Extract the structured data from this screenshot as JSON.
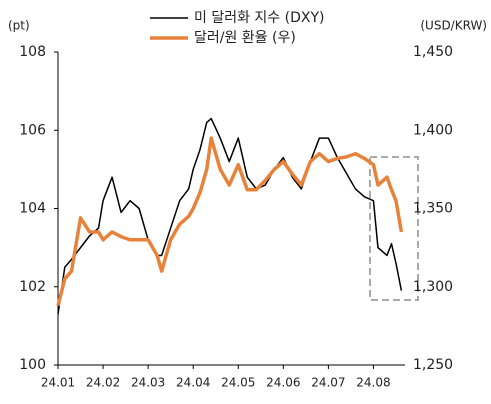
{
  "chart_data": {
    "type": "line",
    "y_label": "(pt)",
    "y2_label": "(USD/KRW)",
    "x": [
      0,
      0.15,
      0.3,
      0.5,
      0.7,
      0.9,
      1.0,
      1.2,
      1.4,
      1.6,
      1.8,
      2.0,
      2.2,
      2.3,
      2.5,
      2.7,
      2.9,
      3.0,
      3.15,
      3.3,
      3.4,
      3.6,
      3.8,
      4.0,
      4.2,
      4.4,
      4.6,
      4.8,
      5.0,
      5.2,
      5.4,
      5.6,
      5.8,
      6.0,
      6.2,
      6.4,
      6.6,
      6.8,
      7.0,
      7.1,
      7.3,
      7.4,
      7.5,
      7.62
    ],
    "xlim": [
      0,
      7.7
    ],
    "xticks": [
      {
        "value": 0,
        "label": "24.01"
      },
      {
        "value": 1,
        "label": "24.02"
      },
      {
        "value": 2,
        "label": "24.03"
      },
      {
        "value": 3,
        "label": "24.04"
      },
      {
        "value": 4,
        "label": "24.05"
      },
      {
        "value": 5,
        "label": "24.06"
      },
      {
        "value": 6,
        "label": "24.07"
      },
      {
        "value": 7,
        "label": "24.08"
      }
    ],
    "ylim": [
      100,
      108
    ],
    "yticks": [
      100,
      102,
      104,
      106,
      108
    ],
    "y2lim": [
      1250,
      1450
    ],
    "y2ticks": [
      {
        "value": 1250,
        "label": "1,250"
      },
      {
        "value": 1300,
        "label": "1,300"
      },
      {
        "value": 1350,
        "label": "1,350"
      },
      {
        "value": 1400,
        "label": "1,400"
      },
      {
        "value": 1450,
        "label": "1,450"
      }
    ],
    "series": [
      {
        "name": "미 달러화 지수 (DXY)",
        "color": "#000000",
        "width": 1.5,
        "values": [
          101.3,
          102.5,
          102.7,
          103.0,
          103.3,
          103.5,
          104.2,
          104.8,
          103.9,
          104.2,
          104.0,
          103.2,
          102.8,
          102.8,
          103.5,
          104.2,
          104.5,
          105.0,
          105.5,
          106.2,
          106.3,
          105.8,
          105.2,
          105.8,
          104.8,
          104.5,
          104.6,
          105.0,
          105.3,
          104.8,
          104.5,
          105.2,
          105.8,
          105.8,
          105.3,
          104.9,
          104.5,
          104.3,
          104.2,
          103.0,
          102.8,
          103.1,
          102.6,
          101.9
        ]
      },
      {
        "name": "달러/원 환율 (우)",
        "color": "#e8823a",
        "width": 3.5,
        "axis": "y2",
        "values": [
          1288,
          1305,
          1310,
          1344,
          1335,
          1335,
          1330,
          1335,
          1332,
          1330,
          1330,
          1330,
          1320,
          1310,
          1330,
          1340,
          1345,
          1350,
          1360,
          1375,
          1395,
          1375,
          1365,
          1378,
          1362,
          1362,
          1368,
          1375,
          1380,
          1372,
          1365,
          1380,
          1385,
          1380,
          1382,
          1383,
          1385,
          1382,
          1378,
          1365,
          1370,
          1362,
          1355,
          1335
        ]
      }
    ]
  }
}
